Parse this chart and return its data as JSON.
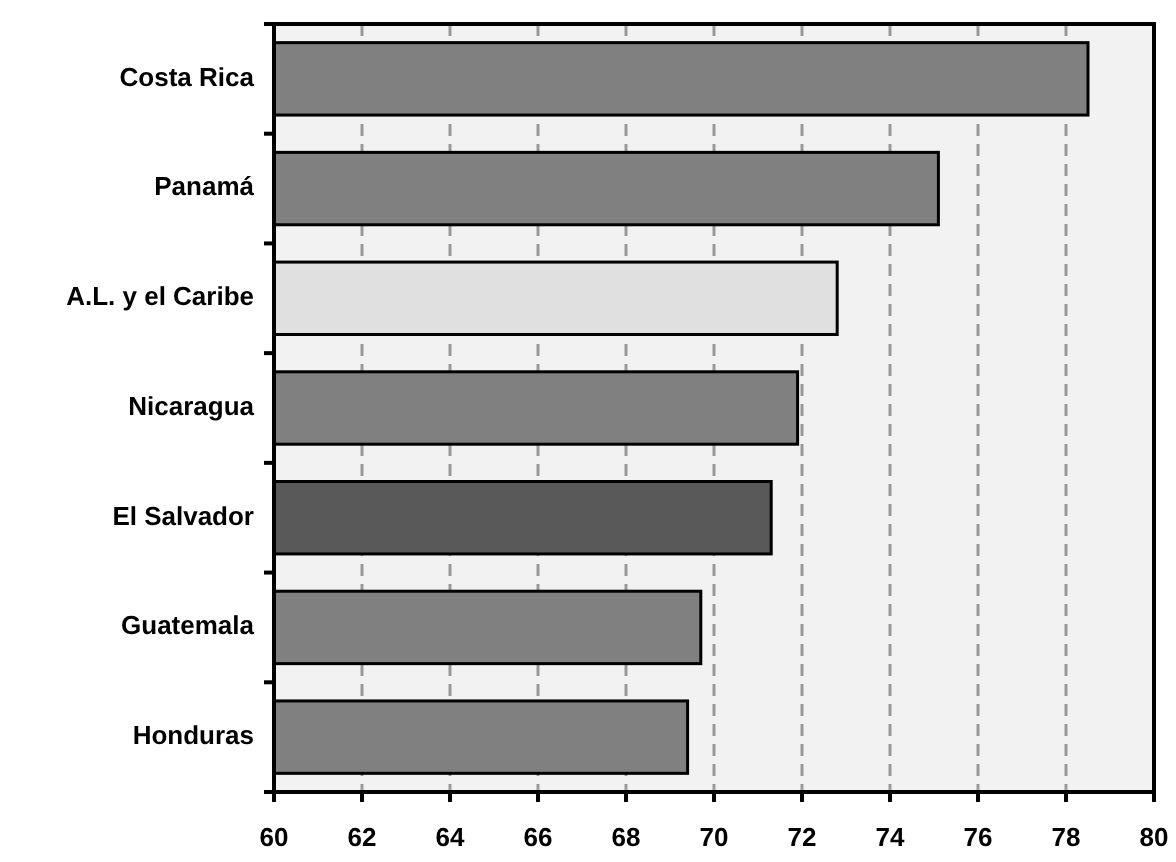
{
  "chart_data": {
    "type": "bar",
    "orientation": "horizontal",
    "categories": [
      "Costa Rica",
      "Panamá",
      "A.L. y el Caribe",
      "Nicaragua",
      "El Salvador",
      "Guatemala",
      "Honduras"
    ],
    "values": [
      78.5,
      75.1,
      72.8,
      71.9,
      71.3,
      69.7,
      69.4
    ],
    "colors": [
      "#808080",
      "#808080",
      "#e0e0e0",
      "#808080",
      "#595959",
      "#808080",
      "#808080"
    ],
    "xlim": [
      60,
      80
    ],
    "xticks": [
      60,
      62,
      64,
      66,
      68,
      70,
      72,
      74,
      76,
      78,
      80
    ],
    "grid": "x"
  }
}
